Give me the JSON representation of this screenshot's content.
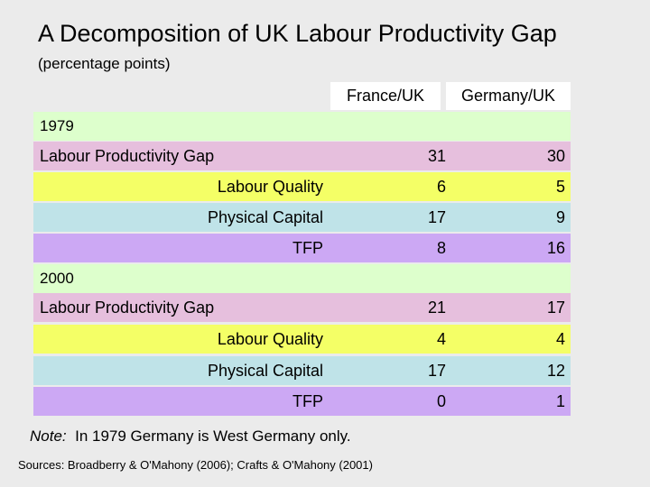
{
  "title": "A Decomposition of UK Labour Productivity Gap",
  "subtitle": "(percentage points)",
  "columns": {
    "france": "France/UK",
    "germany": "Germany/UK"
  },
  "y1979": {
    "year": "1979",
    "gap": {
      "label": "Labour Productivity Gap",
      "france": "31",
      "germany": "30"
    },
    "quality": {
      "label": "Labour Quality",
      "france": "6",
      "germany": "5"
    },
    "capital": {
      "label": "Physical Capital",
      "france": "17",
      "germany": "9"
    },
    "tfp": {
      "label": "TFP",
      "france": "8",
      "germany": "16"
    }
  },
  "y2000": {
    "year": "2000",
    "gap": {
      "label": "Labour Productivity Gap",
      "france": "21",
      "germany": "17"
    },
    "quality": {
      "label": "Labour Quality",
      "france": "4",
      "germany": "4"
    },
    "capital": {
      "label": "Physical Capital",
      "france": "17",
      "germany": "12"
    },
    "tfp": {
      "label": "TFP",
      "france": "0",
      "germany": "1"
    }
  },
  "note": {
    "prefix": "Note:",
    "text": "In 1979 Germany is West Germany only."
  },
  "sources": "Sources:  Broadberry & O'Mahony (2006); Crafts & O'Mahony (2001)",
  "colors": {
    "background": "#ebebeb",
    "year_row": "#ddffcc",
    "gap_row": "#e6bfdd",
    "quality_row": "#f4ff66",
    "capital_row": "#bfe3e8",
    "tfp_row": "#cca8f4"
  }
}
